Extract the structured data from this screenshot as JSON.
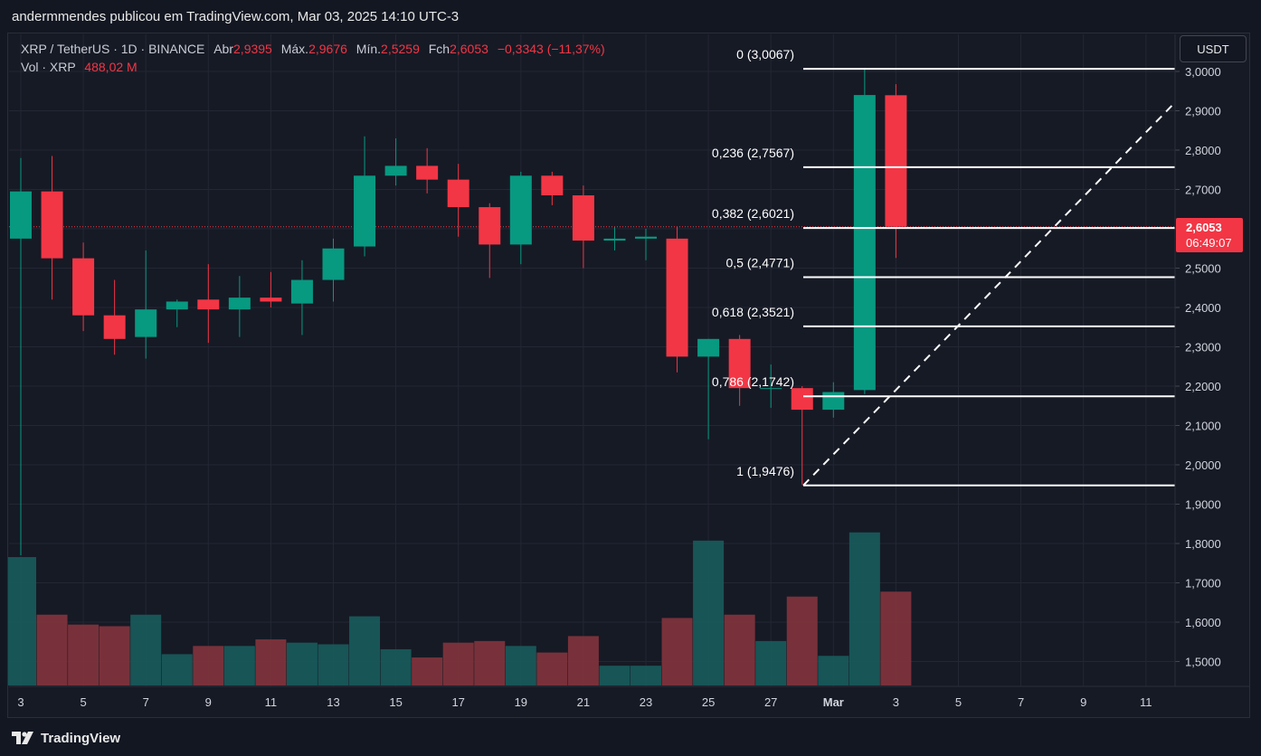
{
  "header": {
    "title": "andermmendes publicou em TradingView.com, Mar 03, 2025 14:10 UTC-3"
  },
  "legend": {
    "symbol": "XRP / TetherUS · 1D · BINANCE",
    "open_label": "Abr",
    "open": "2,9395",
    "high_label": "Máx.",
    "high": "2,9676",
    "low_label": "Mín.",
    "low": "2,5259",
    "close_label": "Fch",
    "close": "2,6053",
    "change": "−0,3343 (−11,37%)",
    "vol_label": "Vol · XRP",
    "vol": "488,02 M"
  },
  "currency": "USDT",
  "price_badge": {
    "price": "2,6053",
    "countdown": "06:49:07"
  },
  "brand": {
    "name": "TradingView"
  },
  "colors": {
    "up": "#089981",
    "down": "#f23645",
    "background": "#161a25",
    "grid": "#232733",
    "fib": "#ffffff"
  },
  "chart_data": {
    "type": "candlestick",
    "symbol": "XRP / TetherUS",
    "interval": "1D",
    "exchange": "BINANCE",
    "ylim": [
      1.43,
      3.06
    ],
    "y_ticks": [
      "3,0000",
      "2,9000",
      "2,8000",
      "2,7000",
      "2,6000",
      "2,5000",
      "2,4000",
      "2,3000",
      "2,2000",
      "2,1000",
      "2,0000",
      "1,9000",
      "1,8000",
      "1,7000",
      "1,6000",
      "1,5000"
    ],
    "x_ticks": [
      "3",
      "5",
      "7",
      "9",
      "11",
      "13",
      "15",
      "17",
      "19",
      "21",
      "23",
      "25",
      "27",
      "Mar",
      "3",
      "5",
      "7",
      "9",
      "11"
    ],
    "candles": [
      {
        "day": "Feb 3",
        "o": 2.575,
        "h": 2.78,
        "l": 1.77,
        "c": 2.695,
        "v": 0.78
      },
      {
        "day": "Feb 4",
        "o": 2.695,
        "h": 2.785,
        "l": 2.42,
        "c": 2.525,
        "v": 0.43
      },
      {
        "day": "Feb 5",
        "o": 2.525,
        "h": 2.565,
        "l": 2.34,
        "c": 2.38,
        "v": 0.37
      },
      {
        "day": "Feb 6",
        "o": 2.38,
        "h": 2.47,
        "l": 2.28,
        "c": 2.32,
        "v": 0.36
      },
      {
        "day": "Feb 7",
        "o": 2.325,
        "h": 2.545,
        "l": 2.27,
        "c": 2.395,
        "v": 0.43
      },
      {
        "day": "Feb 8",
        "o": 2.395,
        "h": 2.42,
        "l": 2.35,
        "c": 2.415,
        "v": 0.19
      },
      {
        "day": "Feb 9",
        "o": 2.42,
        "h": 2.51,
        "l": 2.31,
        "c": 2.395,
        "v": 0.24
      },
      {
        "day": "Feb 10",
        "o": 2.395,
        "h": 2.48,
        "l": 2.325,
        "c": 2.425,
        "v": 0.24
      },
      {
        "day": "Feb 11",
        "o": 2.425,
        "h": 2.49,
        "l": 2.4,
        "c": 2.415,
        "v": 0.28
      },
      {
        "day": "Feb 12",
        "o": 2.41,
        "h": 2.52,
        "l": 2.33,
        "c": 2.47,
        "v": 0.26
      },
      {
        "day": "Feb 13",
        "o": 2.47,
        "h": 2.575,
        "l": 2.415,
        "c": 2.55,
        "v": 0.25
      },
      {
        "day": "Feb 14",
        "o": 2.555,
        "h": 2.835,
        "l": 2.53,
        "c": 2.735,
        "v": 0.42
      },
      {
        "day": "Feb 15",
        "o": 2.735,
        "h": 2.83,
        "l": 2.71,
        "c": 2.76,
        "v": 0.22
      },
      {
        "day": "Feb 16",
        "o": 2.76,
        "h": 2.805,
        "l": 2.69,
        "c": 2.725,
        "v": 0.17
      },
      {
        "day": "Feb 17",
        "o": 2.725,
        "h": 2.765,
        "l": 2.58,
        "c": 2.655,
        "v": 0.26
      },
      {
        "day": "Feb 18",
        "o": 2.655,
        "h": 2.665,
        "l": 2.475,
        "c": 2.56,
        "v": 0.27
      },
      {
        "day": "Feb 19",
        "o": 2.56,
        "h": 2.745,
        "l": 2.51,
        "c": 2.735,
        "v": 0.24
      },
      {
        "day": "Feb 20",
        "o": 2.735,
        "h": 2.745,
        "l": 2.66,
        "c": 2.685,
        "v": 0.2
      },
      {
        "day": "Feb 21",
        "o": 2.685,
        "h": 2.71,
        "l": 2.5,
        "c": 2.57,
        "v": 0.3
      },
      {
        "day": "Feb 22",
        "o": 2.57,
        "h": 2.605,
        "l": 2.545,
        "c": 2.575,
        "v": 0.12
      },
      {
        "day": "Feb 23",
        "o": 2.575,
        "h": 2.6,
        "l": 2.52,
        "c": 2.58,
        "v": 0.12
      },
      {
        "day": "Feb 24",
        "o": 2.575,
        "h": 2.605,
        "l": 2.235,
        "c": 2.275,
        "v": 0.41
      },
      {
        "day": "Feb 25",
        "o": 2.275,
        "h": 2.32,
        "l": 2.065,
        "c": 2.32,
        "v": 0.88
      },
      {
        "day": "Feb 26",
        "o": 2.32,
        "h": 2.33,
        "l": 2.15,
        "c": 2.195,
        "v": 0.43
      },
      {
        "day": "Feb 27",
        "o": 2.195,
        "h": 2.255,
        "l": 2.145,
        "c": 2.195,
        "v": 0.27
      },
      {
        "day": "Feb 28",
        "o": 2.195,
        "h": 2.2,
        "l": 1.95,
        "c": 2.14,
        "v": 0.54
      },
      {
        "day": "Mar 1",
        "o": 2.14,
        "h": 2.21,
        "l": 2.12,
        "c": 2.185,
        "v": 0.18
      },
      {
        "day": "Mar 2",
        "o": 2.19,
        "h": 3.005,
        "l": 2.18,
        "c": 2.94,
        "v": 0.93
      },
      {
        "day": "Mar 3",
        "o": 2.9395,
        "h": 2.9676,
        "l": 2.5259,
        "c": 2.6053,
        "v": 0.57
      }
    ],
    "fib_levels": [
      {
        "label": "0 (3,0067)",
        "price": 3.0067
      },
      {
        "label": "0,236 (2,7567)",
        "price": 2.7567
      },
      {
        "label": "0,382 (2,6021)",
        "price": 2.6021
      },
      {
        "label": "0,5 (2,4771)",
        "price": 2.4771
      },
      {
        "label": "0,618 (2,3521)",
        "price": 2.3521
      },
      {
        "label": "0,786 (2,1742)",
        "price": 2.1742
      },
      {
        "label": "1 (1,9476)",
        "price": 1.9476
      }
    ],
    "last_price": 2.6053
  }
}
